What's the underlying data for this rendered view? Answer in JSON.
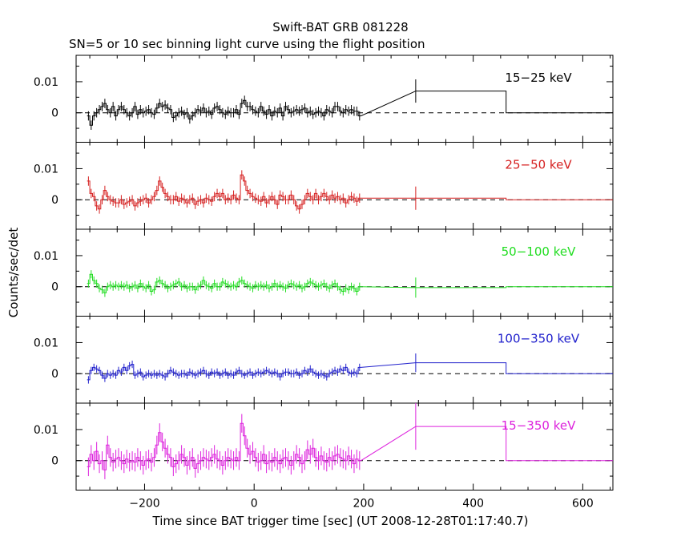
{
  "chart_data": {
    "type": "line",
    "title": "Swift-BAT GRB 081228",
    "subtitle": "SN=5 or 10 sec binning light curve using the flight position",
    "xlabel": "Time since BAT trigger time [sec] (UT 2008-12-28T01:17:40.7)",
    "ylabel": "Counts/sec/det",
    "xlim": [
      -325,
      655
    ],
    "ylim": [
      -0.0095,
      0.0185
    ],
    "x_ticks": [
      -200,
      0,
      200,
      400,
      600
    ],
    "x_tick_labels": [
      "−200",
      "0",
      "200",
      "400",
      "600"
    ],
    "y_ticks": [
      0,
      0.01
    ],
    "y_tick_labels": [
      "0",
      "0.01"
    ],
    "dashed_zero_line": true,
    "panels": [
      {
        "name": "15−25 keV",
        "color": "#000000",
        "bins_start": -305,
        "bin_width": 5,
        "values": [
          -0.001,
          -0.004,
          -0.001,
          0.0,
          0.001,
          0.002,
          0.003,
          0.001,
          0.0,
          0.002,
          -0.001,
          0.001,
          0.002,
          0.001,
          0.0,
          -0.001,
          0.0,
          0.002,
          -0.0005,
          0.001,
          0.0,
          0.0005,
          0.001,
          0.0,
          -0.0005,
          0.0015,
          0.003,
          0.002,
          0.0025,
          0.0015,
          0.001,
          -0.0015,
          -0.001,
          0.0,
          0.0005,
          -0.0005,
          0.0,
          -0.002,
          -0.001,
          0.0,
          0.001,
          0.0005,
          0.0015,
          0.0,
          0.0005,
          -0.0005,
          0.0015,
          0.002,
          0.001,
          0.0,
          -0.0005,
          0.0005,
          0.0,
          0.0,
          0.001,
          -0.0005,
          0.003,
          0.004,
          0.002,
          0.002,
          0.001,
          0.0005,
          0.0,
          0.002,
          0.0005,
          -0.0005,
          0.001,
          -0.001,
          0.0005,
          0.0,
          0.0015,
          -0.001,
          0.002,
          0.001,
          0.0,
          0.0005,
          0.001,
          0.0005,
          0.001,
          0.0015,
          0.0,
          0.0005,
          -0.0005,
          0.0,
          0.0005,
          0.0,
          -0.001,
          0.001,
          0.0005,
          0.0,
          0.002,
          0.002,
          0.0005,
          0.0,
          0.001,
          0.0005,
          0.001,
          0.0005,
          0.0005,
          -0.001
        ],
        "errors": 0.0015,
        "tail": [
          {
            "x0": 295,
            "x1": 460,
            "y": 0.007
          },
          {
            "x0": 460,
            "x1": 655,
            "y": 0.0
          }
        ]
      },
      {
        "name": "25−50 keV",
        "color": "#d62020",
        "bins_start": -305,
        "bin_width": 5,
        "values": [
          0.006,
          0.002,
          0.001,
          -0.002,
          -0.003,
          0.0,
          0.003,
          0.001,
          0.0,
          -0.0005,
          -0.001,
          -0.001,
          0.0,
          -0.0015,
          -0.001,
          -0.0005,
          0.0,
          -0.002,
          -0.001,
          -0.0005,
          0.0,
          0.0005,
          -0.001,
          0.0,
          0.001,
          0.003,
          0.006,
          0.004,
          0.002,
          0.001,
          0.0,
          0.0,
          0.001,
          -0.0005,
          0.0005,
          0.0,
          -0.001,
          0.0,
          0.0005,
          -0.0015,
          -0.0005,
          0.0,
          -0.001,
          0.0005,
          0.0,
          -0.0005,
          0.001,
          0.002,
          0.001,
          0.002,
          0.0,
          0.0005,
          0.0,
          0.0015,
          0.0005,
          0.0,
          0.008,
          0.006,
          0.003,
          0.002,
          0.001,
          0.0005,
          0.0,
          -0.0005,
          0.001,
          -0.001,
          0.0,
          0.001,
          0.0,
          -0.0015,
          0.0015,
          0.001,
          0.0,
          0.0,
          0.0015,
          0.0,
          -0.002,
          -0.003,
          -0.0015,
          0.0,
          0.002,
          0.001,
          0.0,
          0.002,
          0.0,
          0.001,
          0.002,
          0.001,
          0.0,
          0.0015,
          0.0005,
          0.001,
          0.0,
          0.0005,
          -0.001,
          0.0,
          0.001,
          0.0005,
          -0.0005,
          0.0005
        ],
        "errors": 0.0015,
        "tail": [
          {
            "x0": 295,
            "x1": 460,
            "y": 0.0005
          },
          {
            "x0": 460,
            "x1": 655,
            "y": 0.0
          }
        ]
      },
      {
        "name": "50−100 keV",
        "color": "#22dd22",
        "bins_start": -305,
        "bin_width": 5,
        "values": [
          0.001,
          0.004,
          0.002,
          0.001,
          -0.0005,
          -0.001,
          -0.002,
          0.0,
          0.0005,
          0.0,
          0.0005,
          0.0,
          0.0005,
          0.0,
          0.0005,
          -0.0005,
          0.0,
          0.0005,
          -0.0005,
          0.001,
          0.0,
          -0.0005,
          0.0005,
          -0.0015,
          -0.001,
          0.0015,
          0.002,
          0.001,
          0.0005,
          -0.0005,
          0.0,
          0.0005,
          0.001,
          0.0015,
          0.0,
          0.0005,
          -0.0005,
          0.0,
          0.0,
          -0.001,
          0.0,
          0.0005,
          0.002,
          0.0005,
          0.0,
          -0.0005,
          0.001,
          0.0,
          0.0,
          0.0015,
          0.001,
          0.0005,
          0.0,
          0.0005,
          0.0,
          0.0015,
          0.002,
          0.001,
          0.0005,
          0.0,
          -0.0005,
          0.0005,
          0.0,
          0.0005,
          0.0,
          0.0005,
          -0.0005,
          0.0,
          0.001,
          0.0,
          0.0005,
          0.0,
          -0.0005,
          0.0005,
          0.001,
          0.0005,
          0.0,
          0.0005,
          -0.0005,
          0.0,
          0.001,
          0.0015,
          0.001,
          0.0005,
          0.0,
          0.0005,
          0.001,
          0.0,
          -0.0005,
          0.0005,
          0.001,
          0.0,
          -0.001,
          -0.0015,
          -0.0005,
          -0.001,
          0.0,
          -0.0005,
          -0.0015,
          0.0
        ],
        "errors": 0.0013,
        "tail": [
          {
            "x0": 295,
            "x1": 460,
            "y": -0.0003
          },
          {
            "x0": 460,
            "x1": 655,
            "y": 0.0
          }
        ]
      },
      {
        "name": "100−350 keV",
        "color": "#2020cc",
        "bins_start": -305,
        "bin_width": 5,
        "values": [
          -0.002,
          0.001,
          0.002,
          0.0015,
          0.001,
          -0.0005,
          -0.0015,
          0.0,
          -0.0005,
          0.0,
          -0.0005,
          0.001,
          0.0005,
          0.002,
          0.001,
          0.0025,
          0.003,
          -0.0005,
          0.0,
          0.0005,
          -0.001,
          -0.0005,
          0.0,
          -0.0005,
          0.0,
          -0.0005,
          0.0,
          -0.0005,
          -0.001,
          0.0,
          0.001,
          0.0005,
          0.0,
          -0.0005,
          0.0,
          0.0,
          -0.0005,
          0.0005,
          0.0,
          -0.0005,
          0.0,
          0.0005,
          0.001,
          0.0,
          -0.0005,
          0.0005,
          0.0,
          0.0005,
          -0.0005,
          0.0,
          0.0005,
          -0.0005,
          0.0,
          -0.0005,
          0.0005,
          0.001,
          0.0,
          -0.0005,
          0.0,
          0.0005,
          -0.0005,
          0.0,
          0.0005,
          0.0,
          0.0005,
          0.001,
          0.0005,
          0.0,
          0.0005,
          0.0,
          -0.001,
          0.0,
          0.0005,
          0.0005,
          0.0,
          0.0,
          0.0005,
          -0.0005,
          0.0,
          0.001,
          0.0005,
          0.0015,
          0.0005,
          0.0,
          -0.0005,
          0.0,
          -0.0005,
          -0.001,
          0.0,
          0.0005,
          0.001,
          0.0005,
          0.0015,
          0.001,
          0.002,
          0.0005,
          0.0,
          0.0005,
          0.0,
          0.002
        ],
        "errors": 0.0012,
        "tail": [
          {
            "x0": 295,
            "x1": 460,
            "y": 0.0035
          },
          {
            "x0": 460,
            "x1": 655,
            "y": 0.0
          }
        ]
      },
      {
        "name": "15−350 keV",
        "color": "#dd22dd",
        "bins_start": -305,
        "bin_width": 5,
        "values": [
          -0.002,
          0.002,
          0.0,
          0.003,
          -0.001,
          0.0,
          -0.003,
          0.005,
          0.001,
          -0.0005,
          0.0005,
          0.001,
          0.0,
          -0.001,
          0.0005,
          -0.0005,
          0.0,
          -0.0005,
          0.001,
          0.0,
          -0.0015,
          0.0,
          0.0005,
          -0.0005,
          0.001,
          0.005,
          0.009,
          0.006,
          0.004,
          0.002,
          0.001,
          -0.002,
          -0.001,
          0.0,
          0.002,
          0.001,
          -0.0015,
          0.0,
          0.001,
          -0.0025,
          -0.001,
          0.0,
          0.001,
          0.0005,
          0.0,
          0.001,
          0.002,
          0.0005,
          0.0,
          -0.0015,
          0.0,
          0.001,
          0.0005,
          0.0,
          0.001,
          0.0,
          0.012,
          0.008,
          0.004,
          0.002,
          0.003,
          0.001,
          -0.0005,
          0.0,
          0.002,
          -0.001,
          0.0,
          -0.0005,
          0.001,
          0.0,
          -0.001,
          0.0005,
          0.001,
          0.0,
          -0.0015,
          0.0,
          0.002,
          0.001,
          -0.001,
          0.0,
          0.0035,
          0.002,
          0.004,
          0.001,
          0.0,
          0.0015,
          0.0,
          -0.0005,
          0.001,
          0.0,
          0.0015,
          0.002,
          0.001,
          0.0005,
          0.0,
          0.0015,
          0.0005,
          -0.001,
          0.0005,
          0.0
        ],
        "errors": 0.003,
        "tail": [
          {
            "x0": 295,
            "x1": 460,
            "y": 0.011
          },
          {
            "x0": 460,
            "x1": 655,
            "y": 0.0
          }
        ]
      }
    ]
  }
}
